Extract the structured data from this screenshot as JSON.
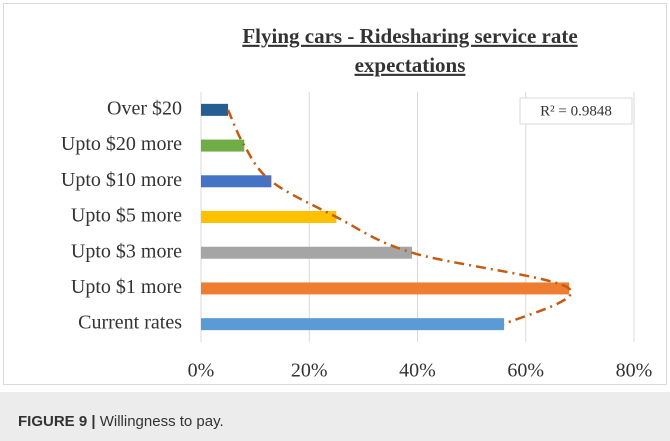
{
  "chart_data": {
    "type": "bar",
    "orientation": "horizontal",
    "title": [
      "Flying cars - Ridesharing service rate",
      "expectations"
    ],
    "categories": [
      "Over $20",
      "Upto $20 more",
      "Upto $10 more",
      "Upto $5 more",
      "Upto $3 more",
      "Upto $1 more",
      "Current rates"
    ],
    "values": [
      5,
      8,
      13,
      25,
      39,
      68,
      56
    ],
    "colors": [
      "#255e91",
      "#70ad47",
      "#4472c4",
      "#ffc000",
      "#a5a5a5",
      "#ed7d31",
      "#5b9bd5"
    ],
    "xlim": [
      0,
      80
    ],
    "xticks": [
      {
        "value": 0,
        "label": "0%"
      },
      {
        "value": 20,
        "label": "20%"
      },
      {
        "value": 40,
        "label": "40%"
      },
      {
        "value": 60,
        "label": "60%"
      },
      {
        "value": 80,
        "label": "80%"
      }
    ],
    "grid": true,
    "trendline": {
      "color": "#c55a11",
      "annotation": "R² = 0.9848"
    }
  },
  "caption": {
    "label": "FIGURE 9 |",
    "text": "Willingness to pay."
  }
}
